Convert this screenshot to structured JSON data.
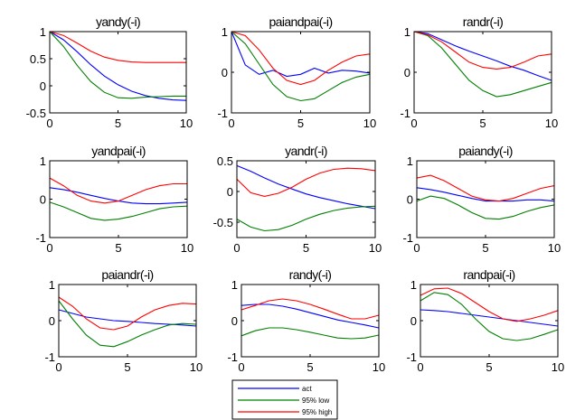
{
  "chart_data": [
    {
      "type": "line",
      "title": "yandy(-i)",
      "x": [
        0,
        1,
        2,
        3,
        4,
        5,
        6,
        7,
        8,
        9,
        10
      ],
      "xlim": [
        0,
        10
      ],
      "ylim": [
        -0.5,
        1
      ],
      "xticks": [
        "0",
        "5",
        "10"
      ],
      "yticks": [
        "1",
        "0.5",
        "0",
        "-0.5"
      ],
      "series": [
        {
          "name": "act",
          "values": [
            1.0,
            0.85,
            0.63,
            0.39,
            0.18,
            0.02,
            -0.1,
            -0.18,
            -0.23,
            -0.26,
            -0.27
          ]
        },
        {
          "name": "95% low",
          "values": [
            1.0,
            0.73,
            0.38,
            0.08,
            -0.12,
            -0.22,
            -0.23,
            -0.21,
            -0.2,
            -0.19,
            -0.19
          ]
        },
        {
          "name": "95% high",
          "values": [
            1.0,
            0.93,
            0.79,
            0.64,
            0.53,
            0.47,
            0.44,
            0.43,
            0.43,
            0.43,
            0.43
          ]
        }
      ]
    },
    {
      "type": "line",
      "title": "paiandpai(-i)",
      "x": [
        0,
        1,
        2,
        3,
        4,
        5,
        6,
        7,
        8,
        9,
        10
      ],
      "xlim": [
        0,
        10
      ],
      "ylim": [
        -1,
        1
      ],
      "xticks": [
        "0",
        "5",
        "10"
      ],
      "yticks": [
        "1",
        "0",
        "-1"
      ],
      "series": [
        {
          "name": "act",
          "values": [
            1.0,
            0.18,
            -0.05,
            0.05,
            -0.1,
            -0.05,
            0.1,
            -0.02,
            0.05,
            0.03,
            -0.02
          ]
        },
        {
          "name": "95% low",
          "values": [
            1.0,
            0.7,
            0.2,
            -0.3,
            -0.6,
            -0.7,
            -0.65,
            -0.45,
            -0.25,
            -0.12,
            -0.05
          ]
        },
        {
          "name": "95% high",
          "values": [
            1.0,
            0.9,
            0.55,
            0.1,
            -0.2,
            -0.3,
            -0.2,
            0.05,
            0.25,
            0.4,
            0.45
          ]
        }
      ]
    },
    {
      "type": "line",
      "title": "randr(-i)",
      "x": [
        0,
        1,
        2,
        3,
        4,
        5,
        6,
        7,
        8,
        9,
        10
      ],
      "xlim": [
        0,
        10
      ],
      "ylim": [
        -1,
        1
      ],
      "xticks": [
        "0",
        "5",
        "10"
      ],
      "yticks": [
        "1",
        "0",
        "-1"
      ],
      "series": [
        {
          "name": "act",
          "values": [
            1.0,
            0.95,
            0.8,
            0.65,
            0.52,
            0.4,
            0.28,
            0.15,
            0.05,
            -0.08,
            -0.2
          ]
        },
        {
          "name": "95% low",
          "values": [
            1.0,
            0.9,
            0.6,
            0.2,
            -0.2,
            -0.45,
            -0.6,
            -0.55,
            -0.45,
            -0.35,
            -0.25
          ]
        },
        {
          "name": "95% high",
          "values": [
            1.0,
            0.92,
            0.75,
            0.5,
            0.25,
            0.12,
            0.08,
            0.12,
            0.25,
            0.4,
            0.45
          ]
        }
      ]
    },
    {
      "type": "line",
      "title": "yandpai(-i)",
      "x": [
        0,
        1,
        2,
        3,
        4,
        5,
        6,
        7,
        8,
        9,
        10
      ],
      "xlim": [
        0,
        10
      ],
      "ylim": [
        -1,
        1
      ],
      "xticks": [
        "0",
        "5",
        "10"
      ],
      "yticks": [
        "1",
        "0",
        "-1"
      ],
      "series": [
        {
          "name": "act",
          "values": [
            0.3,
            0.25,
            0.18,
            0.1,
            0.02,
            -0.05,
            -0.1,
            -0.12,
            -0.12,
            -0.1,
            -0.08
          ]
        },
        {
          "name": "95% low",
          "values": [
            -0.08,
            -0.2,
            -0.35,
            -0.5,
            -0.55,
            -0.52,
            -0.45,
            -0.35,
            -0.25,
            -0.2,
            -0.18
          ]
        },
        {
          "name": "95% high",
          "values": [
            0.55,
            0.35,
            0.1,
            -0.05,
            -0.1,
            -0.05,
            0.1,
            0.25,
            0.35,
            0.4,
            0.4
          ]
        }
      ]
    },
    {
      "type": "line",
      "title": "yandr(-i)",
      "x": [
        0,
        1,
        2,
        3,
        4,
        5,
        6,
        7,
        8,
        9,
        10
      ],
      "xlim": [
        0,
        10
      ],
      "ylim": [
        -0.75,
        0.5
      ],
      "xticks": [
        "0",
        "5",
        "10"
      ],
      "yticks": [
        "0.5",
        "0",
        "-0.5"
      ],
      "series": [
        {
          "name": "act",
          "values": [
            0.42,
            0.33,
            0.22,
            0.12,
            0.04,
            -0.04,
            -0.1,
            -0.15,
            -0.2,
            -0.24,
            -0.28
          ]
        },
        {
          "name": "95% low",
          "values": [
            -0.45,
            -0.58,
            -0.64,
            -0.62,
            -0.55,
            -0.45,
            -0.37,
            -0.31,
            -0.27,
            -0.25,
            -0.24
          ]
        },
        {
          "name": "95% high",
          "values": [
            0.2,
            -0.02,
            -0.08,
            -0.03,
            0.07,
            0.2,
            0.3,
            0.36,
            0.38,
            0.37,
            0.34
          ]
        }
      ]
    },
    {
      "type": "line",
      "title": "paiandy(-i)",
      "x": [
        0,
        1,
        2,
        3,
        4,
        5,
        6,
        7,
        8,
        9,
        10
      ],
      "xlim": [
        0,
        10
      ],
      "ylim": [
        -1,
        1
      ],
      "xticks": [
        "0",
        "5",
        "10"
      ],
      "yticks": [
        "1",
        "0",
        "-1"
      ],
      "series": [
        {
          "name": "act",
          "values": [
            0.3,
            0.25,
            0.18,
            0.1,
            0.02,
            -0.05,
            -0.05,
            -0.05,
            -0.02,
            -0.02,
            -0.05
          ]
        },
        {
          "name": "95% low",
          "values": [
            -0.05,
            0.08,
            0.02,
            -0.15,
            -0.35,
            -0.5,
            -0.52,
            -0.45,
            -0.32,
            -0.22,
            -0.15
          ]
        },
        {
          "name": "95% high",
          "values": [
            0.55,
            0.62,
            0.48,
            0.28,
            0.08,
            -0.02,
            -0.05,
            0.02,
            0.15,
            0.28,
            0.35
          ]
        }
      ]
    },
    {
      "type": "line",
      "title": "paiandr(-i)",
      "x": [
        0,
        1,
        2,
        3,
        4,
        5,
        6,
        7,
        8,
        9,
        10
      ],
      "xlim": [
        0,
        10
      ],
      "ylim": [
        -1,
        1
      ],
      "xticks": [
        "0",
        "5",
        "10"
      ],
      "yticks": [
        "1",
        "0",
        "-1"
      ],
      "series": [
        {
          "name": "act",
          "values": [
            0.3,
            0.2,
            0.1,
            0.05,
            0.0,
            -0.02,
            -0.05,
            -0.08,
            -0.1,
            -0.12,
            -0.15
          ]
        },
        {
          "name": "95% low",
          "values": [
            0.55,
            0.05,
            -0.4,
            -0.68,
            -0.72,
            -0.58,
            -0.4,
            -0.25,
            -0.12,
            -0.08,
            -0.1
          ]
        },
        {
          "name": "95% high",
          "values": [
            0.65,
            0.4,
            0.05,
            -0.2,
            -0.25,
            -0.15,
            0.1,
            0.3,
            0.42,
            0.48,
            0.46
          ]
        }
      ]
    },
    {
      "type": "line",
      "title": "randy(-i)",
      "x": [
        0,
        1,
        2,
        3,
        4,
        5,
        6,
        7,
        8,
        9,
        10
      ],
      "xlim": [
        0,
        10
      ],
      "ylim": [
        -1,
        1
      ],
      "xticks": [
        "0",
        "5",
        "10"
      ],
      "yticks": [
        "1",
        "0",
        "-1"
      ],
      "series": [
        {
          "name": "act",
          "values": [
            0.42,
            0.45,
            0.45,
            0.4,
            0.32,
            0.22,
            0.12,
            0.02,
            -0.05,
            -0.12,
            -0.2
          ]
        },
        {
          "name": "95% low",
          "values": [
            -0.42,
            -0.28,
            -0.2,
            -0.2,
            -0.25,
            -0.32,
            -0.4,
            -0.48,
            -0.5,
            -0.48,
            -0.4
          ]
        },
        {
          "name": "95% high",
          "values": [
            0.3,
            0.42,
            0.55,
            0.6,
            0.55,
            0.45,
            0.32,
            0.18,
            0.05,
            0.05,
            0.15
          ]
        }
      ]
    },
    {
      "type": "line",
      "title": "randpai(-i)",
      "x": [
        0,
        1,
        2,
        3,
        4,
        5,
        6,
        7,
        8,
        9,
        10
      ],
      "xlim": [
        0,
        10
      ],
      "ylim": [
        -1,
        1
      ],
      "xticks": [
        "0",
        "5",
        "10"
      ],
      "yticks": [
        "1",
        "0",
        "-1"
      ],
      "series": [
        {
          "name": "act",
          "values": [
            0.3,
            0.28,
            0.25,
            0.2,
            0.15,
            0.1,
            0.05,
            0.0,
            -0.05,
            -0.1,
            -0.15
          ]
        },
        {
          "name": "95% low",
          "values": [
            0.55,
            0.78,
            0.72,
            0.45,
            0.05,
            -0.3,
            -0.5,
            -0.55,
            -0.5,
            -0.38,
            -0.25
          ]
        },
        {
          "name": "95% high",
          "values": [
            0.7,
            0.88,
            0.9,
            0.75,
            0.5,
            0.25,
            0.05,
            -0.02,
            0.05,
            0.15,
            0.28
          ]
        }
      ]
    }
  ],
  "legend": {
    "entries": [
      {
        "label": "act",
        "color": "#0000ff"
      },
      {
        "label": "95% low",
        "color": "#007f00"
      },
      {
        "label": "95% high",
        "color": "#ff0000"
      }
    ]
  },
  "colors": {
    "act": "#0000ff",
    "low": "#007f00",
    "high": "#ff0000",
    "axes": "#000000"
  }
}
